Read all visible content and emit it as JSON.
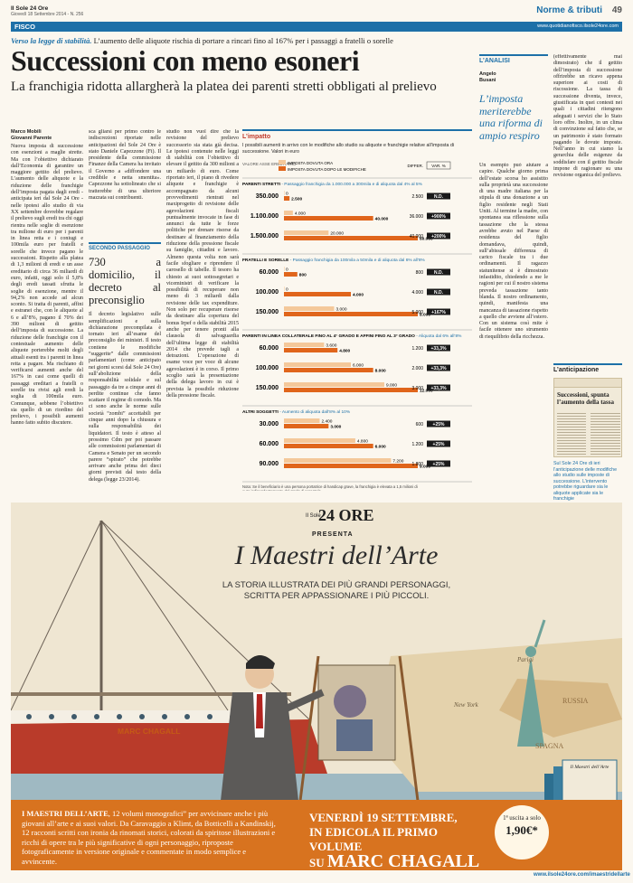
{
  "masthead": {
    "name": "Il Sole 24 Ore",
    "date": "Giovedì 18 Settembre 2014 - N. 256",
    "section": "Norme & tributi",
    "page": "49"
  },
  "section_bar": {
    "label": "FISCO",
    "url": "www.quotidianofisco.ilsole24ore.com"
  },
  "article": {
    "kicker_lead": "Verso la legge di stabilità.",
    "kicker_rest": " L’aumento delle aliquote rischia di portare a rincari fino al 167% per i passaggi a fratelli o sorelle",
    "headline": "Successioni con meno esoneri",
    "subhead": "La franchigia ridotta allargherà la platea dei parenti stretti obbligati al prelievo",
    "authors": "Marco Mobili\nGiovanni Parente",
    "col1": "Nuova imposta di successione con esenzioni a maglie strette. Ma con l’obiettivo dichiarato dall’Economia di garantire un maggiore gettito del prelievo. L’aumento delle aliquote e la riduzione delle franchigie dell’imposta pagata dagli eredi - anticipata ieri dal Sole 24 Ore - nelle ipotesi allo studio di via XX settembre dovrebbe regalare il prelievo sugli eredi tra chi oggi rientra nelle soglie di esenzione tra milione di euro per i parenti in linea retta e i coniugi e 100mila euro per fratelli e sorelle che invece pagano le successioni. Rispetto alla platea di 1,3 milioni di eredi e un asse ereditario di circa 36 miliardi di euro, infatti, oggi solo il 5,8% degli eredi tassati sfrutta le soglie di esenzione, mentre il 94,2% non accede ad alcun sconto. Si tratta di parenti, affini e estranei che, con le aliquote al 6 e all’8%, pagano il 70% dei 390 milioni di gettito dell’imposta di successione. La riduzione delle franchigie con il contestuale aumento delle aliquote porterebbe molti degli attuali esenti tra i parenti in linea retta a pagare. Ma rischiano di verificarsi aumenti anche del 167% in casi come quelli di passaggi ereditari a fratelli o sorelle tra rivisi agli eredi la soglia di 100mila euro. Comunque, sebbene l’obiettivo sia quello di un riordino del prelievo, i possibili aumenti hanno fatto subito discutere.",
    "col2": "sca gliarsi per primo contro le indiscrezioni riportate nelle anticipazioni del Sole 24 Ore è stato Daniele Capezzone (Fi). Il presidente della commissione Finanze della Camera ha invitato il Governo a «diffondere una credibile e netta smentita». Capezzone ha sottolineato che si tratterebbe di una ulteriore mazzata sui contribuenti.",
    "col3": "studio non vuol dire che la revisione del prelievo successorio sia stata già decisa. Le ipotesi contenute nelle leggi di stabilità con l’obiettivo di elevare il gettito da 300 milioni a un miliardo di euro. Come riportato ieri, il piano di rivedere aliquote e franchigie è accompagnato da alcuni provvedimenti rientrati nel maxiprogetto di revisione delle agevolazioni fiscali puntualmente invocate in fase di annunci da tutte le forze politiche per drenare risorse da destinare al finanziamento della riduzione della pressione fiscale su famiglie, cittadini e lavoro. Almeno questa volta non sarà facile sfogliare e riprendere il carosello di tabelle. Il tesoro ha chiesto ai suoi sottosegretari e viceministri di verificare la possibilità di recuperare non meno di 3 miliardi dalla revisione delle tax expenditure. Non solo per recuperare risorse da destinare alla copertura del bonus Irpef o della stabilità 2015 anche per tenere pronti alla clausola di salvaguardia dell’ultima legge di stabilità 2014 che prevede tagli a detrazioni. L’operazione di esame voce per voce di alcune agevolazioni è in corso. Il primo scoglio sarà la presentazione della delega lavoro in cui è prevista la possibile riduzione della pressione fiscale."
  },
  "box": {
    "label": "SECONDO PASSAGGIO",
    "title": "730 a domicilio, il decreto al preconsiglio",
    "text": "Il decreto legislativo sulle semplificazioni e sulla dichiarazione precompilata è tornato ieri all’esame del preconsiglio dei ministri. Il testo contiene le modifiche “suggerite” dalle commissioni parlamentari (come anticipato nei giorni scorsi dal Sole 24 Ore) sull’abolizione della responsabilità solidale e sul passaggio da tre a cinque anni di perdite continue che fanno scattare il regime di comodo. Ma ci sono anche le norme sulle società “zombi” accettabili per cinque anni dopo la chiusura e sulla responsabilità dei liquidatori. Il testo è atteso al prossimo Cdm per poi passare alle commissioni parlamentari di Camera e Senato per un secondo parere “spirato” che potrebbe arrivare anche prima dei dieci giorni previsti dal testo della delega (legge 23/2014)."
  },
  "chart_data": {
    "type": "bar",
    "title": "L’impatto",
    "description": "I possibili aumenti in arrivo con le modifiche allo studio su aliquote e franchigie relative all’imposta di successione. Valori in euro",
    "legend": {
      "header": "VALORE ASSE EREDITARIO",
      "current": "IMPOSTA DOVUTA ORA",
      "proposed": "IMPOSTA DOVUTA DOPO LE MODIFICHE",
      "diff": "DIFFER.",
      "pct": "VAR. %"
    },
    "colors": {
      "current": "#f4c89a",
      "proposed": "#e0651b",
      "accent": "#1d70a8",
      "pct_bg": "#1a1a1a"
    },
    "groups": [
      {
        "title": "PARENTI STRETTI",
        "desc": " - Passaggio franchigia da 1.000.000 a 300mila e di aliquota dal 4% al 5%",
        "rows": [
          {
            "label": "350.000",
            "current": 0,
            "proposed": 2500,
            "current_label": "0",
            "proposed_label": "2.500",
            "diff": "2.500",
            "pct": "N.D."
          },
          {
            "label": "1.100.000",
            "current": 4000,
            "proposed": 40000,
            "current_label": "4.000",
            "proposed_label": "40.000",
            "diff": "36.000",
            "pct": "+900%"
          },
          {
            "label": "1.500.000",
            "current": 20000,
            "proposed": 60000,
            "current_label": "20.000",
            "proposed_label": "60.000",
            "diff": "40.000",
            "pct": "+200%"
          }
        ]
      },
      {
        "title": "FRATELLI E SORELLE",
        "desc": " - Passaggio franchigia da 100mila a 50mila e di aliquota dal 6% all’8%",
        "rows": [
          {
            "label": "60.000",
            "current": 0,
            "proposed": 800,
            "current_label": "0",
            "proposed_label": "800",
            "diff": "800",
            "pct": "N.D."
          },
          {
            "label": "100.000",
            "current": 0,
            "proposed": 4000,
            "current_label": "0",
            "proposed_label": "4.000",
            "diff": "4.000",
            "pct": "N.D."
          },
          {
            "label": "150.000",
            "current": 3000,
            "proposed": 8000,
            "current_label": "3.000",
            "proposed_label": "8.000",
            "diff": "5.000",
            "pct": "+167%"
          }
        ]
      },
      {
        "title": "PARENTI IN LINEA COLLATERALE FINO AL 4° GRADO E AFFINI FINO AL 3° GRADO",
        "desc": " - Aliquota dal 6% all’8%",
        "rows": [
          {
            "label": "60.000",
            "current": 3600,
            "proposed": 4800,
            "current_label": "3.600",
            "proposed_label": "4.800",
            "diff": "1.200",
            "pct": "+33,3%"
          },
          {
            "label": "100.000",
            "current": 6000,
            "proposed": 8000,
            "current_label": "6.000",
            "proposed_label": "8.000",
            "diff": "2.000",
            "pct": "+33,3%"
          },
          {
            "label": "150.000",
            "current": 9000,
            "proposed": 12000,
            "current_label": "9.000",
            "proposed_label": "12.000",
            "diff": "3.000",
            "pct": "+33,3%"
          }
        ]
      },
      {
        "title": "ALTRI SOGGETTI",
        "desc": " - Aumento di aliquota dall’8% al 10%",
        "rows": [
          {
            "label": "30.000",
            "current": 2400,
            "proposed": 3000,
            "current_label": "2.400",
            "proposed_label": "3.000",
            "diff": "600",
            "pct": "+25%"
          },
          {
            "label": "60.000",
            "current": 4800,
            "proposed": 6000,
            "current_label": "4.800",
            "proposed_label": "6.000",
            "diff": "1.200",
            "pct": "+25%"
          },
          {
            "label": "90.000",
            "current": 7200,
            "proposed": 9000,
            "current_label": "7.200",
            "proposed_label": "9.000",
            "diff": "1.800",
            "pct": "+25%"
          }
        ]
      }
    ],
    "note": "Nota: Se il beneficiario è una persona portatrice di handicap grave, la franchigia è elevata a 1,5 milioni di euro indipendentemente dal grado di parentela"
  },
  "analysis": {
    "label": "L’ANALISI",
    "author": "Angelo\nBusani",
    "quote": "L’imposta meriterebbe una riforma di ampio respiro",
    "text": "Un esempio può aiutare a capire. Qualche giorno prima dell’estate scorsa ho assistito sulla proprietà una successione di una madre italiana per la stipula di una donazione a un figlio residente negli Stati Uniti. Al termine la madre, con spontanea sua riflessione sulla tassazione che la stessa avrebbe avuto nel Paese di residenza del figlio domandava, quindi, sull’abissale differenza di carico fiscale tra i due ordinamenti. Il ragazzo statunitense si è dimostrato infastidito, chiedendo a me le ragioni per cui il nostro sistema preveda tassazione tanto blanda. Il nostro ordinamento, quindi, manifesta una mancanza di tassazione rispetto a quello che avviene all’estero. Con un sistema così mite è facile ottenere uno strumento di riequilibrio della ricchezza.",
    "col_right": "(effettivamente mai dimostrato) che il gettito dell’imposta di successione offrirebbe un ricavo appena superiore ai costi di riscossione. La tassa di successione diventa, invece, giustificata in quei contesti nei quali i cittadini ritengono adeguati i servizi che lo Stato loro offre. Inoltre, in un clima di convinzione sul fatto che, se un patrimonio è stato formato pagando le dovute imposte. Nell’anno in cui siamo la gerarchia delle esigenze da soddisfare con il gettito fiscale impone di ragionare su una revisione organica del prelievo."
  },
  "anticipazione": {
    "label": "L’anticipazione",
    "thumb_title": "Successioni, spunta l’aumento della tassa",
    "caption": "Sul Sole 24 Ore di ieri l’anticipazione delle modifiche allo studio sulle imposte di successione. L’intervento potrebbe riguardare sia le aliquote applicate sia le franchigie"
  },
  "ad": {
    "brand_small": "Il Sole",
    "brand": "24 ORE",
    "presenta": "PRESENTA",
    "title": "I Maestri dell’Arte",
    "tagline": "LA STORIA ILLUSTRATA DEI PIÙ GRANDI PERSONAGGI, SCRITTA PER APPASSIONARE I PIÙ PICCOLI.",
    "character": "MARC CHAGALL",
    "map_labels": [
      "Parigi",
      "New York",
      "SPAGNA",
      "RUSSIA"
    ],
    "copy_lead": "I MAESTRI DELL’ARTE",
    "copy": ", 12 volumi monografici” per avvicinare anche i più giovani all’arte e ai suoi valori. Da Caravaggio a Klimt, da Botticelli a Kandinskij, 12 racconti scritti con ironia da rinomati storici, colorati da spiritose illustrazioni e ricchi di opere tra le più significative di ogni personaggio, riproposte fotograficamente in versione originale e commentate in modo semplice e avvincente.",
    "release_line1": "VENERDÌ 19 SETTEMBRE,",
    "release_line2": "IN EDICOLA IL PRIMO VOLUME",
    "release_line3_pre": "SU ",
    "release_line3": "MARC CHAGALL",
    "price_label": "1ª uscita a solo",
    "price": "1,90€*",
    "book_title": "Il Maestri dell’Arte",
    "footnote_url": "www.ilsole24ore.com/imaestridellarte"
  }
}
